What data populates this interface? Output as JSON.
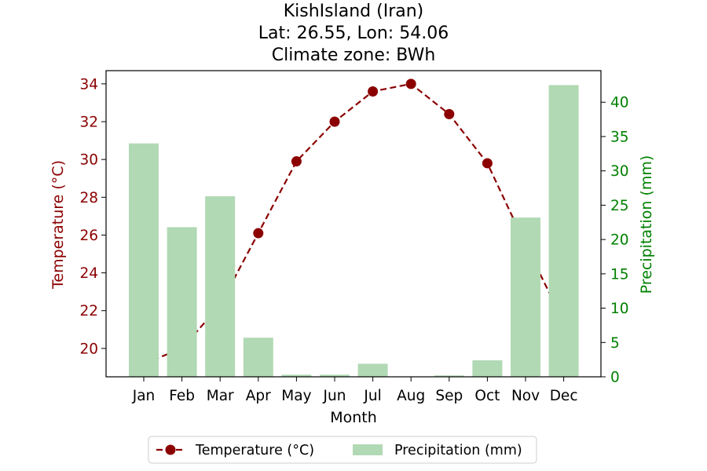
{
  "chart_data": {
    "type": "bar+line",
    "title_lines": [
      "KishIsland (Iran)",
      "Lat: 26.55, Lon: 54.06",
      "Climate zone: BWh"
    ],
    "xlabel": "Month",
    "ylabel_left": "Temperature (°C)",
    "ylabel_right": "Precipitation (mm)",
    "categories": [
      "Jan",
      "Feb",
      "Mar",
      "Apr",
      "May",
      "Jun",
      "Jul",
      "Aug",
      "Sep",
      "Oct",
      "Nov",
      "Dec"
    ],
    "temperature": {
      "name": "Temperature (°C)",
      "values": [
        19.2,
        20.0,
        22.3,
        26.1,
        29.9,
        32.0,
        33.6,
        34.0,
        32.4,
        29.8,
        25.5,
        21.4
      ],
      "color": "#8b0000",
      "ylim": [
        18.5,
        34.7
      ],
      "ticks": [
        20,
        22,
        24,
        26,
        28,
        30,
        32,
        34
      ]
    },
    "precipitation": {
      "name": "Precipitation (mm)",
      "values": [
        34.0,
        21.8,
        26.3,
        5.7,
        0.3,
        0.3,
        1.9,
        0.0,
        0.2,
        2.4,
        23.2,
        42.5
      ],
      "color": "#b1d9b4",
      "ylim": [
        0,
        44.6
      ],
      "ticks": [
        0,
        5,
        10,
        15,
        20,
        25,
        30,
        35,
        40
      ]
    },
    "legend_position": "below",
    "left_axis_color": "#8b0000",
    "right_axis_color": "#008000"
  }
}
